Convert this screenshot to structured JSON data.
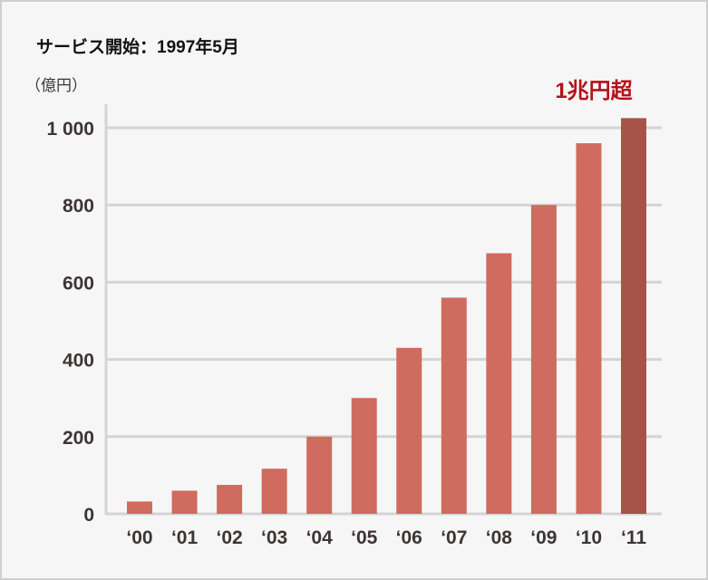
{
  "chart_data": {
    "type": "bar",
    "title": "サービス開始：1997年5月",
    "ylabel": "（億円）",
    "annotation": "1兆円超",
    "categories": [
      "‘00",
      "‘01",
      "‘02",
      "‘03",
      "‘04",
      "‘05",
      "‘06",
      "‘07",
      "‘08",
      "‘09",
      "‘10",
      "‘11"
    ],
    "values": [
      32,
      60,
      75,
      117,
      200,
      300,
      430,
      560,
      675,
      800,
      960,
      1025
    ],
    "yticks": [
      0,
      200,
      400,
      600,
      800,
      1000
    ],
    "ytick_labels": [
      "0",
      "200",
      "400",
      "600",
      "800",
      "1 000"
    ],
    "ylim": [
      0,
      1000
    ],
    "grid": true,
    "colors": {
      "bar": "#d06b5f",
      "highlight_bar": "#a7534a",
      "annotation": "#b5121b",
      "text": "#3d3535",
      "grid": "#d4d4d4"
    }
  }
}
